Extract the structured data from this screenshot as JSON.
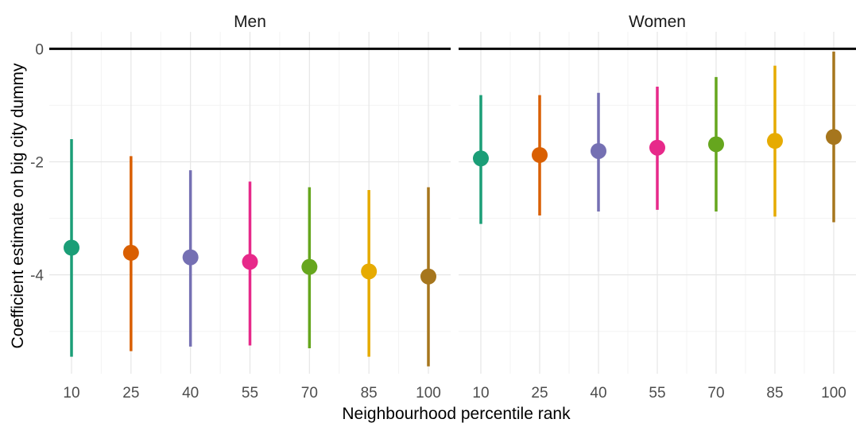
{
  "chart_data": {
    "type": "scatter",
    "subtype": "point-with-error-bars (faceted)",
    "xlabel": "Neighbourhood percentile rank",
    "ylabel": "Coefficient estimate on big city dummy",
    "x": [
      10,
      25,
      40,
      55,
      70,
      85,
      100
    ],
    "xticks": [
      "10",
      "25",
      "40",
      "55",
      "70",
      "85",
      "100"
    ],
    "yticks": [
      "0",
      "-2",
      "-4"
    ],
    "ylim": [
      -5.75,
      0.3
    ],
    "reference_line_y": 0,
    "grid": true,
    "legend": "none",
    "point_colors": [
      "#1b9e77",
      "#d95f02",
      "#7570b3",
      "#e7298a",
      "#66a61e",
      "#e6ab02",
      "#a6761d"
    ],
    "facets": [
      {
        "label": "Men",
        "estimate": [
          -3.52,
          -3.61,
          -3.69,
          -3.77,
          -3.86,
          -3.94,
          -4.03
        ],
        "lower": [
          -5.45,
          -5.35,
          -5.27,
          -5.25,
          -5.3,
          -5.45,
          -5.62
        ],
        "upper": [
          -1.6,
          -1.9,
          -2.15,
          -2.35,
          -2.45,
          -2.5,
          -2.45
        ]
      },
      {
        "label": "Women",
        "estimate": [
          -1.94,
          -1.88,
          -1.81,
          -1.75,
          -1.69,
          -1.63,
          -1.56
        ],
        "lower": [
          -3.1,
          -2.95,
          -2.88,
          -2.85,
          -2.88,
          -2.97,
          -3.07
        ],
        "upper": [
          -0.82,
          -0.82,
          -0.78,
          -0.67,
          -0.5,
          -0.3,
          -0.05
        ]
      }
    ]
  }
}
